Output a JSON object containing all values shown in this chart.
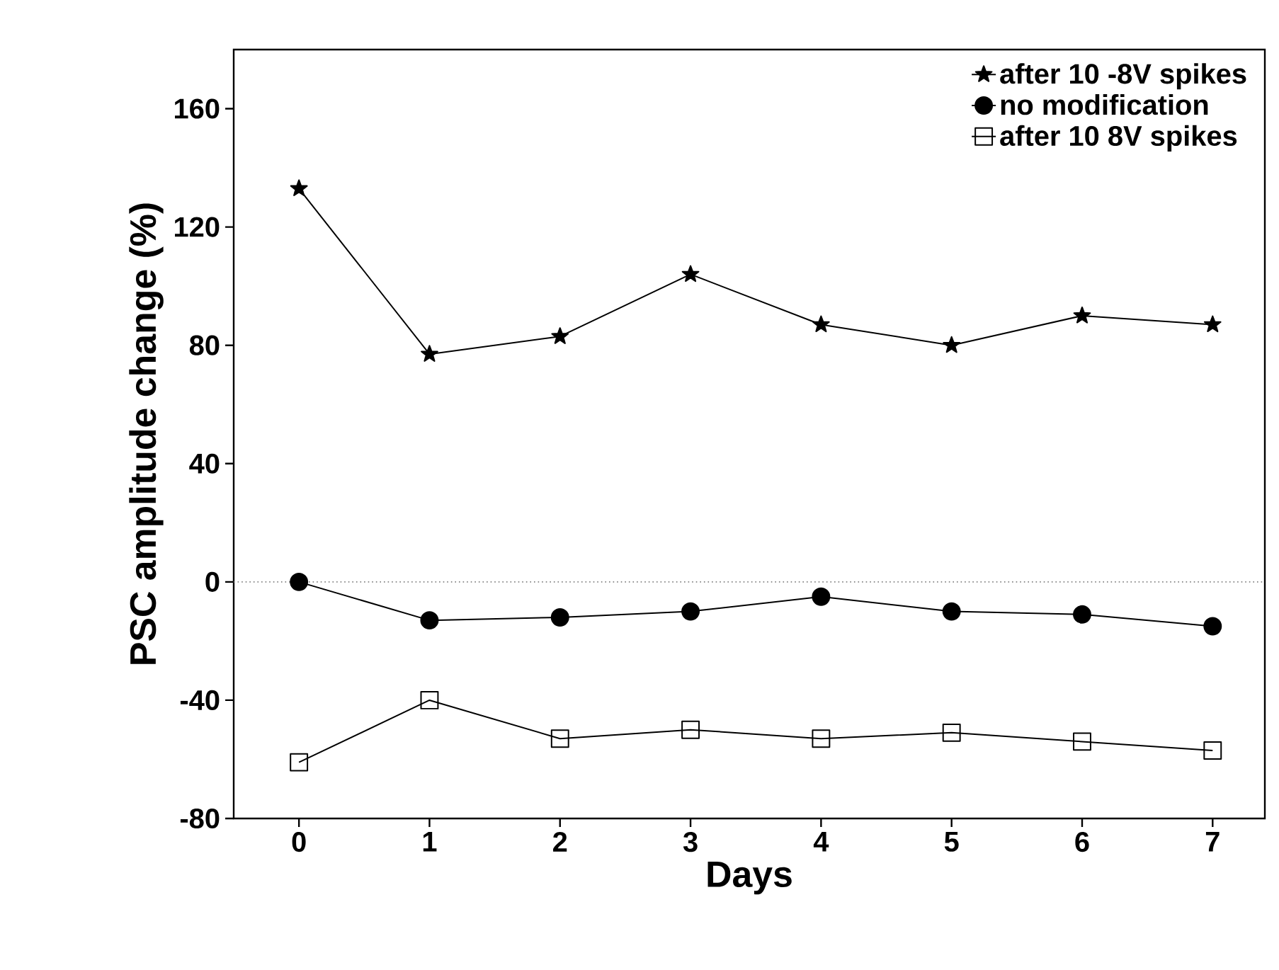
{
  "chart_data": {
    "type": "line",
    "xlabel": "Days",
    "ylabel": "PSC amplitude change (%)",
    "x": [
      0,
      1,
      2,
      3,
      4,
      5,
      6,
      7
    ],
    "series": [
      {
        "name": "after 10 -8V spikes",
        "color": "#000000",
        "marker": "star",
        "values": [
          133,
          77,
          83,
          104,
          87,
          80,
          90,
          87
        ]
      },
      {
        "name": "no modification",
        "color": "#000000",
        "marker": "circle",
        "values": [
          0,
          -13,
          -12,
          -10,
          -5,
          -10,
          -11,
          -15
        ]
      },
      {
        "name": "after 10 8V spikes",
        "color": "#000000",
        "marker": "square",
        "values": [
          -61,
          -40,
          -53,
          -50,
          -53,
          -51,
          -54,
          -57
        ]
      }
    ],
    "xlim": [
      -0.5,
      7.4
    ],
    "ylim": [
      -80,
      180
    ],
    "xticks": [
      0,
      1,
      2,
      3,
      4,
      5,
      6,
      7
    ],
    "yticks": [
      -80,
      -40,
      0,
      40,
      80,
      120,
      160
    ],
    "ref_lines": [
      {
        "axis": "y",
        "value": 0,
        "line_style": "dotted"
      }
    ],
    "legend": "top right",
    "grid": false,
    "line_style": "solid"
  }
}
